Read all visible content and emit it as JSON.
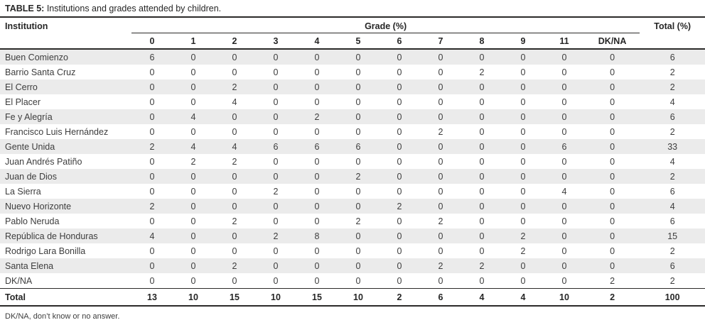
{
  "title": {
    "label": "TABLE 5:",
    "text": "Institutions and grades attended by children."
  },
  "table": {
    "institution_header": "Institution",
    "grade_group_header": "Grade (%)",
    "total_header": "Total (%)",
    "grade_columns": [
      "0",
      "1",
      "2",
      "3",
      "4",
      "5",
      "6",
      "7",
      "8",
      "9",
      "11",
      "DK/NA"
    ],
    "rows": [
      {
        "institution": "Buen Comienzo",
        "values": [
          6,
          0,
          0,
          0,
          0,
          0,
          0,
          0,
          0,
          0,
          0,
          0
        ],
        "total": 6
      },
      {
        "institution": "Barrio Santa Cruz",
        "values": [
          0,
          0,
          0,
          0,
          0,
          0,
          0,
          0,
          2,
          0,
          0,
          0
        ],
        "total": 2
      },
      {
        "institution": "El Cerro",
        "values": [
          0,
          0,
          2,
          0,
          0,
          0,
          0,
          0,
          0,
          0,
          0,
          0
        ],
        "total": 2
      },
      {
        "institution": "El Placer",
        "values": [
          0,
          0,
          4,
          0,
          0,
          0,
          0,
          0,
          0,
          0,
          0,
          0
        ],
        "total": 4
      },
      {
        "institution": "Fe y Alegría",
        "values": [
          0,
          4,
          0,
          0,
          2,
          0,
          0,
          0,
          0,
          0,
          0,
          0
        ],
        "total": 6
      },
      {
        "institution": "Francisco Luis Hernández",
        "values": [
          0,
          0,
          0,
          0,
          0,
          0,
          0,
          2,
          0,
          0,
          0,
          0
        ],
        "total": 2
      },
      {
        "institution": "Gente Unida",
        "values": [
          2,
          4,
          4,
          6,
          6,
          6,
          0,
          0,
          0,
          0,
          6,
          0
        ],
        "total": 33
      },
      {
        "institution": "Juan Andrés Patiño",
        "values": [
          0,
          2,
          2,
          0,
          0,
          0,
          0,
          0,
          0,
          0,
          0,
          0
        ],
        "total": 4
      },
      {
        "institution": "Juan de Dios",
        "values": [
          0,
          0,
          0,
          0,
          0,
          2,
          0,
          0,
          0,
          0,
          0,
          0
        ],
        "total": 2
      },
      {
        "institution": "La Sierra",
        "values": [
          0,
          0,
          0,
          2,
          0,
          0,
          0,
          0,
          0,
          0,
          4,
          0
        ],
        "total": 6
      },
      {
        "institution": "Nuevo Horizonte",
        "values": [
          2,
          0,
          0,
          0,
          0,
          0,
          2,
          0,
          0,
          0,
          0,
          0
        ],
        "total": 4
      },
      {
        "institution": "Pablo Neruda",
        "values": [
          0,
          0,
          2,
          0,
          0,
          2,
          0,
          2,
          0,
          0,
          0,
          0
        ],
        "total": 6
      },
      {
        "institution": "República de Honduras",
        "values": [
          4,
          0,
          0,
          2,
          8,
          0,
          0,
          0,
          0,
          2,
          0,
          0
        ],
        "total": 15
      },
      {
        "institution": "Rodrigo Lara Bonilla",
        "values": [
          0,
          0,
          0,
          0,
          0,
          0,
          0,
          0,
          0,
          2,
          0,
          0
        ],
        "total": 2
      },
      {
        "institution": "Santa Elena",
        "values": [
          0,
          0,
          2,
          0,
          0,
          0,
          0,
          2,
          2,
          0,
          0,
          0
        ],
        "total": 6
      },
      {
        "institution": "DK/NA",
        "values": [
          0,
          0,
          0,
          0,
          0,
          0,
          0,
          0,
          0,
          0,
          0,
          2
        ],
        "total": 2
      }
    ],
    "total_row": {
      "label": "Total",
      "values": [
        13,
        10,
        15,
        10,
        15,
        10,
        2,
        6,
        4,
        4,
        10,
        2
      ],
      "total": 100
    }
  },
  "footnote": "DK/NA, don’t know or no answer.",
  "colors": {
    "row_stripe": "#ebebeb",
    "text": "#3d3d3d",
    "heading": "#262626",
    "line": "#2b2a29"
  }
}
